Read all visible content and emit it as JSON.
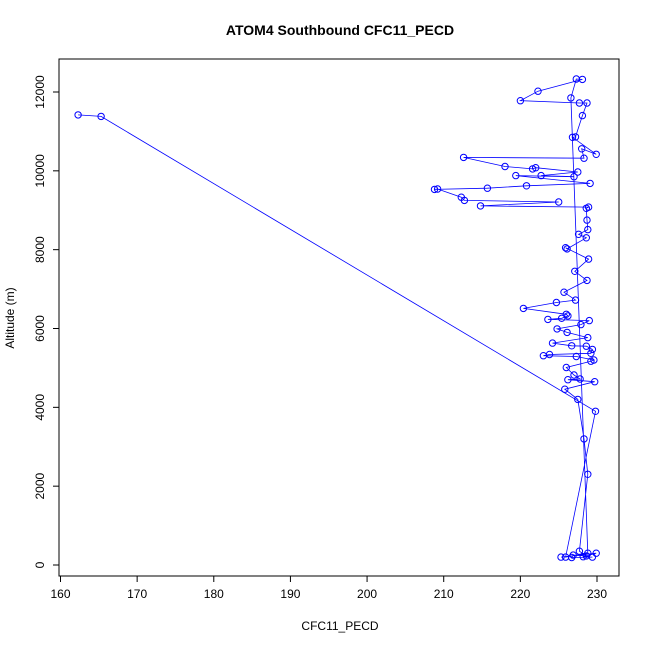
{
  "chart_data": {
    "type": "line",
    "title": "ATOM4 Southbound CFC11_PECD",
    "xlabel": "CFC11_PECD",
    "ylabel": "Altitude (m)",
    "xlim": [
      160,
      232
    ],
    "ylim": [
      0,
      12800
    ],
    "x_ticks": [
      160,
      170,
      180,
      190,
      200,
      210,
      220,
      230
    ],
    "y_ticks": [
      0,
      2000,
      4000,
      6000,
      8000,
      10000,
      12000
    ],
    "series": [
      {
        "color": "#0000ff",
        "marker": "open-circle",
        "line": true,
        "points": [
          [
            162.3,
            11420
          ],
          [
            165.3,
            11380
          ],
          [
            229.8,
            3900
          ],
          [
            225.9,
            200
          ],
          [
            228.8,
            300
          ],
          [
            226.6,
            11850
          ],
          [
            227.3,
            12330
          ],
          [
            228.1,
            12320
          ],
          [
            222.3,
            12020
          ],
          [
            220.0,
            11780
          ],
          [
            227.7,
            11720
          ],
          [
            228.7,
            11720
          ],
          [
            228.1,
            11400
          ],
          [
            227.2,
            10860
          ],
          [
            226.8,
            10850
          ],
          [
            229.9,
            10420
          ],
          [
            228.0,
            10560
          ],
          [
            228.3,
            10320
          ],
          [
            212.6,
            10340
          ],
          [
            218.0,
            10110
          ],
          [
            221.6,
            10050
          ],
          [
            222.0,
            10080
          ],
          [
            227.5,
            9970
          ],
          [
            222.7,
            9880
          ],
          [
            227.0,
            9850
          ],
          [
            219.4,
            9880
          ],
          [
            229.1,
            9680
          ],
          [
            220.8,
            9620
          ],
          [
            215.7,
            9560
          ],
          [
            208.8,
            9530
          ],
          [
            209.2,
            9540
          ],
          [
            212.3,
            9330
          ],
          [
            212.7,
            9250
          ],
          [
            225.0,
            9210
          ],
          [
            214.8,
            9110
          ],
          [
            228.9,
            9080
          ],
          [
            228.6,
            9050
          ],
          [
            228.7,
            8750
          ],
          [
            228.8,
            8510
          ],
          [
            227.6,
            8390
          ],
          [
            228.6,
            8300
          ],
          [
            226.1,
            8020
          ],
          [
            225.9,
            8050
          ],
          [
            228.9,
            7760
          ],
          [
            227.1,
            7450
          ],
          [
            228.7,
            7220
          ],
          [
            225.7,
            6920
          ],
          [
            227.2,
            6720
          ],
          [
            224.7,
            6660
          ],
          [
            220.4,
            6510
          ],
          [
            226.0,
            6360
          ],
          [
            226.2,
            6320
          ],
          [
            225.4,
            6260
          ],
          [
            223.6,
            6230
          ],
          [
            229.0,
            6200
          ],
          [
            227.9,
            6100
          ],
          [
            224.8,
            5990
          ],
          [
            226.1,
            5900
          ],
          [
            228.8,
            5770
          ],
          [
            224.2,
            5630
          ],
          [
            226.7,
            5560
          ],
          [
            228.6,
            5550
          ],
          [
            229.4,
            5470
          ],
          [
            229.2,
            5370
          ],
          [
            223.8,
            5340
          ],
          [
            223.0,
            5310
          ],
          [
            227.3,
            5290
          ],
          [
            229.6,
            5200
          ],
          [
            229.2,
            5170
          ],
          [
            226.0,
            5010
          ],
          [
            227.0,
            4820
          ],
          [
            227.8,
            4720
          ],
          [
            226.2,
            4700
          ],
          [
            229.7,
            4650
          ],
          [
            225.8,
            4460
          ],
          [
            227.5,
            4200
          ],
          [
            228.3,
            3200
          ],
          [
            228.8,
            2300
          ],
          [
            227.7,
            350
          ],
          [
            228.6,
            230
          ],
          [
            226.9,
            250
          ],
          [
            226.7,
            190
          ],
          [
            229.4,
            200
          ],
          [
            228.2,
            210
          ],
          [
            229.9,
            300
          ],
          [
            225.3,
            200
          ]
        ]
      }
    ]
  }
}
